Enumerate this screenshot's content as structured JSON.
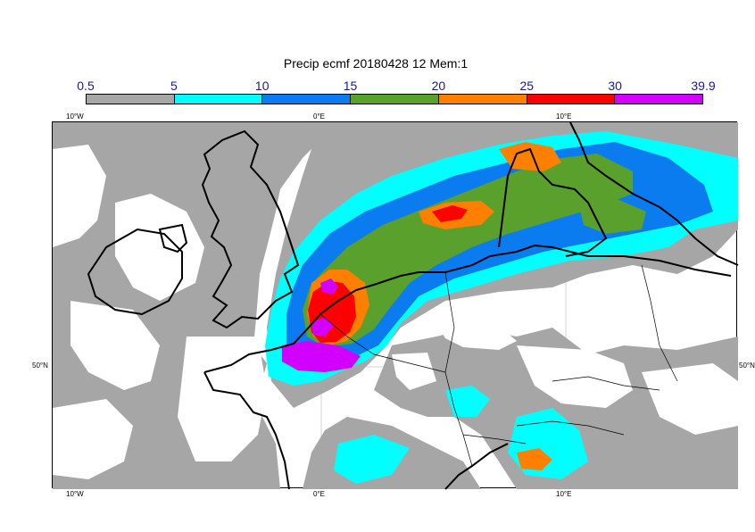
{
  "title": "Precip ecmf 20180428 12 Mem:1",
  "colorbar": {
    "labels": [
      "0.5",
      "5",
      "10",
      "15",
      "20",
      "25",
      "30",
      "39.9"
    ],
    "colors": [
      "#a6a6a6",
      "#00ffff",
      "#0a7cf0",
      "#5aa02c",
      "#ff7f00",
      "#ff0000",
      "#d200ff"
    ]
  },
  "axes": {
    "top": [
      "10°W",
      "0°E",
      "10°E"
    ],
    "bottom": [
      "10°W",
      "0°E",
      "10°E"
    ],
    "left": [
      "50°N"
    ],
    "right": [
      "50°N"
    ]
  },
  "map_colors": {
    "land_border": "#000000",
    "grid": "#c8c8c8",
    "gray": "#a6a6a6",
    "cyan": "#00ffff",
    "blue": "#0a7cf0",
    "green": "#5aa02c",
    "orange": "#ff7f00",
    "red": "#ff0000",
    "magenta": "#d200ff"
  }
}
